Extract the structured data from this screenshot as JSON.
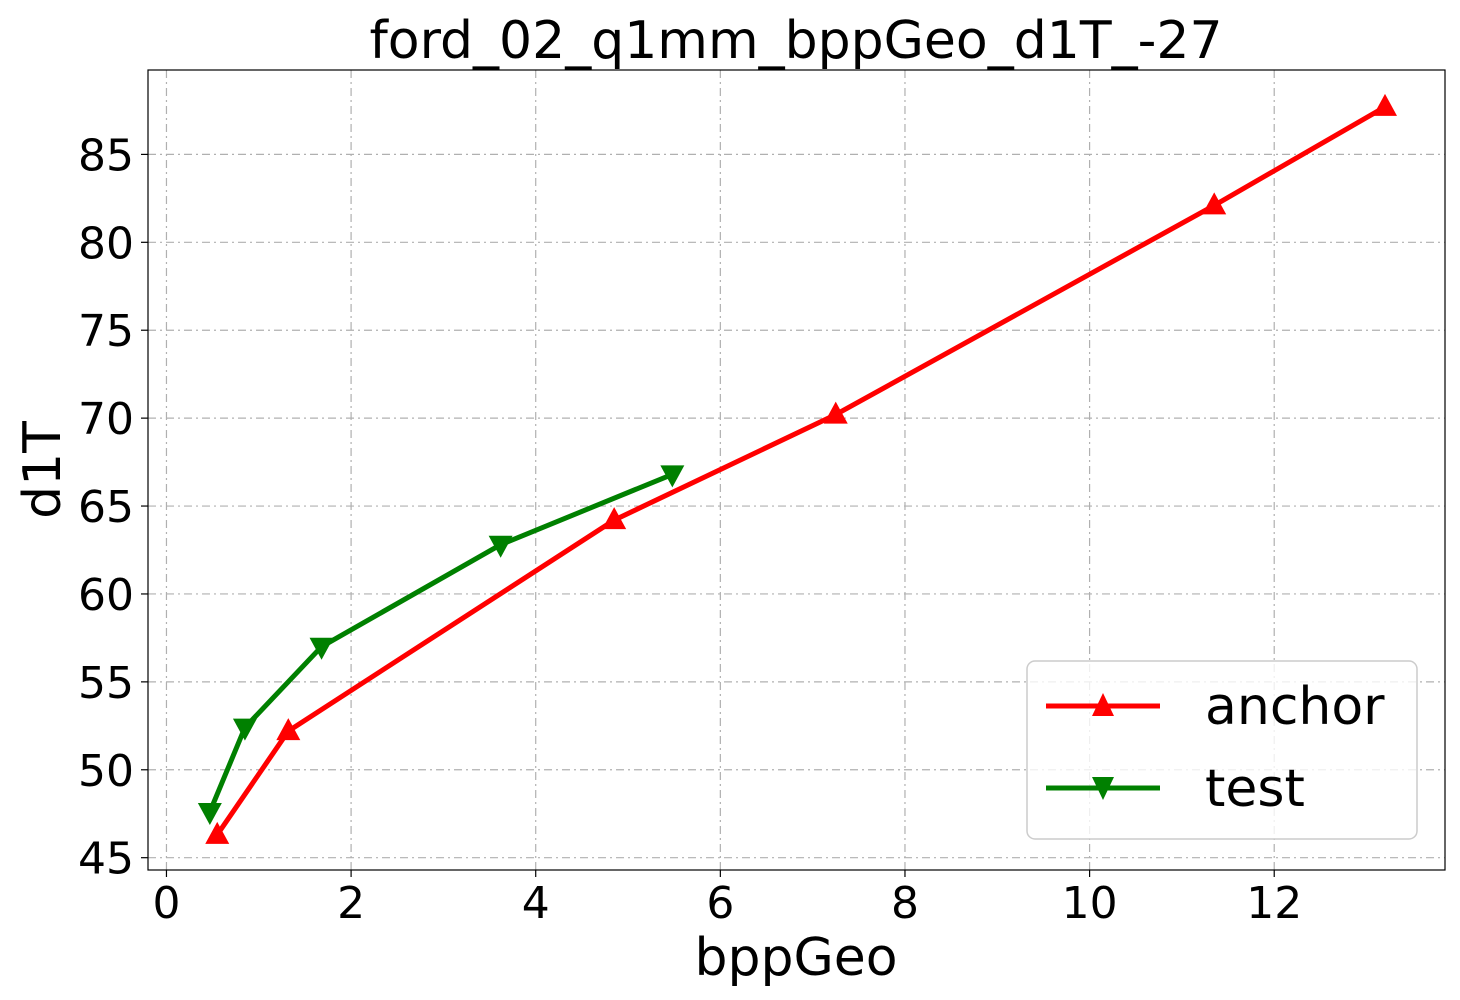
{
  "chart_data": {
    "type": "line",
    "title": "ford_02_q1mm_bppGeo_d1T_-27",
    "xlabel": "bppGeo",
    "ylabel": "d1T",
    "xlim": [
      -0.2,
      13.85
    ],
    "ylim": [
      44.3,
      89.8
    ],
    "xticks": [
      0,
      2,
      4,
      6,
      8,
      10,
      12
    ],
    "yticks": [
      45,
      50,
      55,
      60,
      65,
      70,
      75,
      80,
      85
    ],
    "grid": true,
    "legend_position": "lower-right",
    "series": [
      {
        "name": "anchor",
        "color": "#ff0000",
        "marker": "triangle-up",
        "x": [
          0.55,
          1.32,
          4.85,
          7.25,
          11.35,
          13.2
        ],
        "y": [
          46.3,
          52.2,
          64.2,
          70.2,
          82.1,
          87.7
        ]
      },
      {
        "name": "test",
        "color": "#008000",
        "marker": "triangle-down",
        "x": [
          0.47,
          0.85,
          1.68,
          3.62,
          5.48
        ],
        "y": [
          47.6,
          52.4,
          57.0,
          62.8,
          66.8
        ]
      }
    ]
  }
}
